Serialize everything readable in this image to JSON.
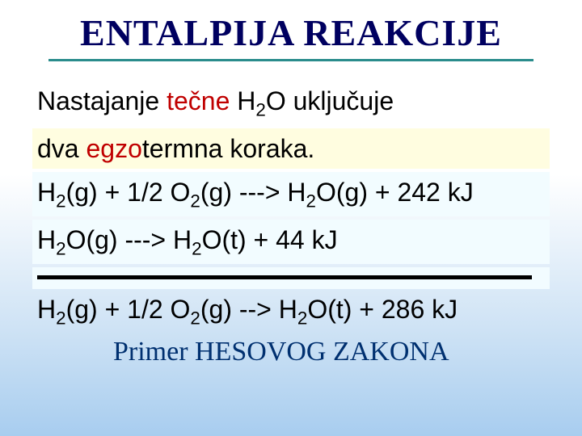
{
  "title": "ENTALPIJA REAKCIJE",
  "line1_a": "Nastajanje ",
  "line1_red": "tečne",
  "line1_b": " H",
  "line1_c": "O uključuje",
  "line2_a": "dva ",
  "line2_red": "egzo",
  "line2_b": "termna koraka.",
  "eq1_a": "H",
  "eq1_b": "(g) + 1/2 O",
  "eq1_c": "(g) --->  H",
  "eq1_d": "O(g) + 242 kJ",
  "eq2_a": "H",
  "eq2_b": "O(g) --->  H",
  "eq2_c": "O(t) + 44 kJ",
  "eq3_a": "H",
  "eq3_b": "(g) + 1/2 O",
  "eq3_c": "(g) --> H",
  "eq3_d": "O(t) + 286 kJ",
  "hess": "Primer HESOVOG ZAKONA",
  "sub2": "2"
}
